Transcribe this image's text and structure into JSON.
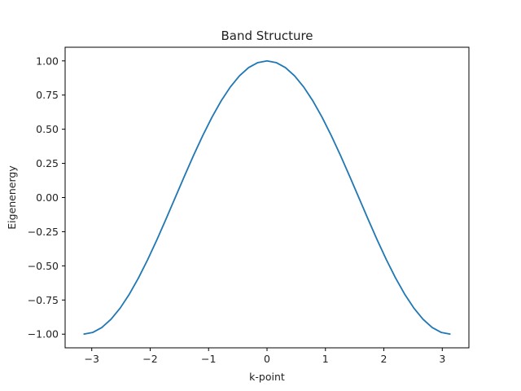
{
  "chart_data": {
    "type": "line",
    "title": "Band Structure",
    "xlabel": "k-point",
    "ylabel": "Eigenenergy",
    "xlim": [
      -3.4558,
      3.4558
    ],
    "ylim": [
      -1.1,
      1.1
    ],
    "grid": false,
    "legend": "none",
    "x_ticks": [
      -3,
      -2,
      -1,
      0,
      1,
      2,
      3
    ],
    "x_tick_labels": [
      "−3",
      "−2",
      "−1",
      "0",
      "1",
      "2",
      "3"
    ],
    "y_ticks": [
      -1.0,
      -0.75,
      -0.5,
      -0.25,
      0.0,
      0.25,
      0.5,
      0.75,
      1.0
    ],
    "y_tick_labels": [
      "−1.00",
      "−0.75",
      "−0.50",
      "−0.25",
      "0.00",
      "0.25",
      "0.50",
      "0.75",
      "1.00"
    ],
    "series": [
      {
        "color": "#1f77b4",
        "x": [
          -3.1416,
          -2.9845,
          -2.8274,
          -2.6704,
          -2.5133,
          -2.3562,
          -2.1991,
          -2.042,
          -1.885,
          -1.7279,
          -1.5708,
          -1.4137,
          -1.2566,
          -1.0996,
          -0.9425,
          -0.7854,
          -0.6283,
          -0.4712,
          -0.3142,
          -0.1571,
          0.0,
          0.1571,
          0.3142,
          0.4712,
          0.6283,
          0.7854,
          0.9425,
          1.0996,
          1.2566,
          1.4137,
          1.5708,
          1.7279,
          1.885,
          2.042,
          2.1991,
          2.3562,
          2.5133,
          2.6704,
          2.8274,
          2.9845,
          3.1416
        ],
        "y": [
          -1.0,
          -0.9877,
          -0.9511,
          -0.891,
          -0.809,
          -0.7071,
          -0.5878,
          -0.454,
          -0.309,
          -0.1564,
          0.0,
          0.1564,
          0.309,
          0.454,
          0.5878,
          0.7071,
          0.809,
          0.891,
          0.9511,
          0.9877,
          1.0,
          0.9877,
          0.9511,
          0.891,
          0.809,
          0.7071,
          0.5878,
          0.454,
          0.309,
          0.1564,
          0.0,
          -0.1564,
          -0.309,
          -0.454,
          -0.5878,
          -0.7071,
          -0.809,
          -0.891,
          -0.9511,
          -0.9877,
          -1.0
        ]
      }
    ]
  }
}
